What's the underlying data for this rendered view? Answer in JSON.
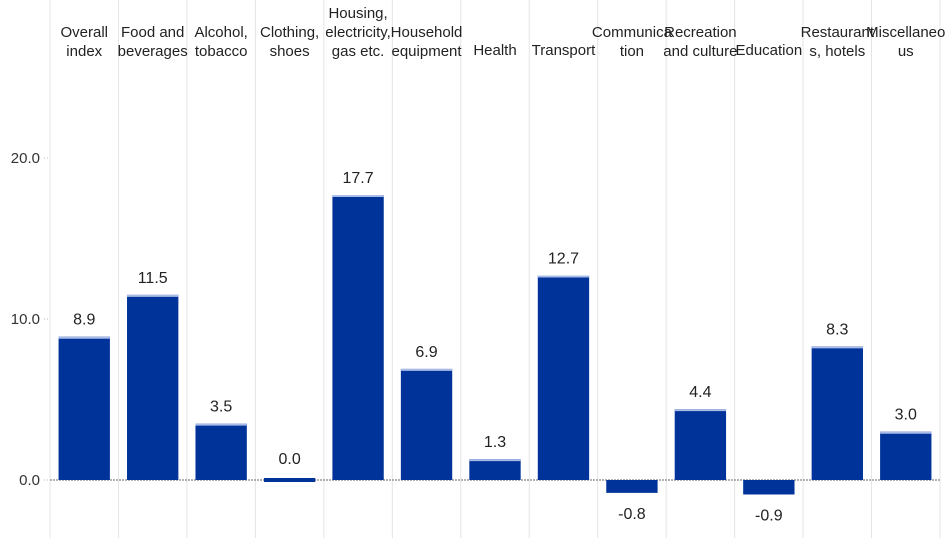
{
  "chart_data": {
    "type": "bar",
    "title": "",
    "xlabel": "",
    "ylabel": "",
    "categories": [
      [
        "Overall",
        "index"
      ],
      [
        "Food and",
        "beverages"
      ],
      [
        "Alcohol,",
        "tobacco"
      ],
      [
        "Clothing,",
        "shoes"
      ],
      [
        "Housing,",
        "electricity,",
        "gas etc."
      ],
      [
        "Household",
        "equipment"
      ],
      [
        "Health"
      ],
      [
        "Transport"
      ],
      [
        "Communica",
        "tion"
      ],
      [
        "Recreation",
        "and culture"
      ],
      [
        "Education"
      ],
      [
        "Restaurant",
        "s, hotels"
      ],
      [
        "Miscellaneo",
        "us"
      ]
    ],
    "values": [
      8.9,
      11.5,
      3.5,
      0.0,
      17.7,
      6.9,
      1.3,
      12.7,
      -0.8,
      4.4,
      -0.9,
      8.3,
      3.0
    ],
    "value_labels": [
      "8.9",
      "11.5",
      "3.5",
      "0.0",
      "17.7",
      "6.9",
      "1.3",
      "12.7",
      "-0.8",
      "4.4",
      "-0.9",
      "8.3",
      "3.0"
    ],
    "yticks": [
      0,
      10,
      20
    ],
    "ytick_labels": [
      "0.0",
      "10.0",
      "20.0"
    ],
    "ylim": [
      -3,
      30
    ],
    "grid": "vertical",
    "legend": "none",
    "colors": {
      "bar": "#003399",
      "bar_top": "#a9bce8",
      "zero_line": "#888888",
      "grid": "#e4e4e4"
    }
  }
}
